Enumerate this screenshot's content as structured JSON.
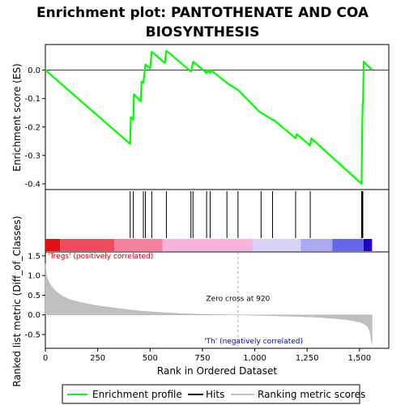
{
  "chart_data": {
    "type": "line",
    "title_line1": "Enrichment plot: PANTOTHENATE AND COA",
    "title_line2": "BIOSYNTHESIS",
    "top_panel": {
      "ylabel": "Enrichment score (ES)",
      "ylim": [
        -0.42,
        0.09
      ],
      "yticks": [
        0.0,
        -0.1,
        -0.2,
        -0.3,
        -0.4
      ],
      "ytick_labels": [
        "0.0",
        "-0.1",
        "-0.2",
        "-0.3",
        "-0.4"
      ],
      "series": [
        {
          "name": "Enrichment profile",
          "color": "#00ff00",
          "x": [
            0,
            405,
            408,
            420,
            423,
            455,
            460,
            468,
            478,
            500,
            508,
            570,
            578,
            695,
            700,
            705,
            770,
            775,
            787,
            790,
            867,
            870,
            920,
            1020,
            1030,
            1085,
            1090,
            1195,
            1200,
            1265,
            1270,
            1510,
            1512,
            1515,
            1517,
            1520,
            1560
          ],
          "y": [
            0.0,
            -0.26,
            -0.165,
            -0.175,
            -0.085,
            -0.11,
            -0.04,
            -0.045,
            0.02,
            0.005,
            0.065,
            0.025,
            0.068,
            -0.005,
            0.01,
            0.03,
            -0.01,
            0.0,
            -0.01,
            0.0,
            -0.045,
            -0.047,
            -0.07,
            -0.145,
            -0.15,
            -0.175,
            -0.175,
            -0.24,
            -0.225,
            -0.265,
            -0.24,
            -0.4,
            -0.26,
            -0.12,
            -0.11,
            0.03,
            0.0
          ]
        }
      ]
    },
    "hits": [
      405,
      420,
      468,
      478,
      508,
      578,
      695,
      705,
      770,
      787,
      867,
      920,
      1030,
      1085,
      1195,
      1265,
      1510,
      1512,
      1514,
      1516
    ],
    "middle_panel": {
      "colors": [
        "#dd1111",
        "#ee4c5c",
        "#f5829c",
        "#f8b4dc",
        "#d8d4f8",
        "#aaaaf0",
        "#6666e8",
        "#2200cc"
      ],
      "segments": [
        {
          "from": 0,
          "to": 70,
          "color_index": 0
        },
        {
          "from": 70,
          "to": 330,
          "color_index": 1
        },
        {
          "from": 330,
          "to": 560,
          "color_index": 2
        },
        {
          "from": 560,
          "to": 990,
          "color_index": 3
        },
        {
          "from": 990,
          "to": 1220,
          "color_index": 4
        },
        {
          "from": 1220,
          "to": 1370,
          "color_index": 5
        },
        {
          "from": 1370,
          "to": 1520,
          "color_index": 6
        },
        {
          "from": 1520,
          "to": 1560,
          "color_index": 7
        }
      ]
    },
    "bottom_panel": {
      "ylabel": "Ranked list metric (Diff_of_Classes)",
      "xlabel": "Rank in Ordered Dataset",
      "ylim": [
        -0.85,
        1.6
      ],
      "yticks": [
        -0.5,
        0.0,
        0.5,
        1.0,
        1.5
      ],
      "ytick_labels": [
        "-0.5",
        "0.0",
        "0.5",
        "1.0",
        "1.5"
      ],
      "xlim": [
        0,
        1640
      ],
      "xticks": [
        0,
        250,
        500,
        750,
        1000,
        1250,
        1500
      ],
      "xtick_labels": [
        "0",
        "250",
        "500",
        "750",
        "1,000",
        "1,250",
        "1,500"
      ],
      "metric_x": [
        0,
        5,
        15,
        30,
        50,
        80,
        120,
        180,
        250,
        350,
        450,
        550,
        650,
        750,
        850,
        920,
        1000,
        1100,
        1200,
        1300,
        1400,
        1450,
        1500,
        1520,
        1540,
        1550,
        1560
      ],
      "metric_y": [
        1.3,
        1.0,
        0.85,
        0.72,
        0.6,
        0.48,
        0.38,
        0.3,
        0.23,
        0.16,
        0.1,
        0.06,
        0.03,
        0.015,
        0.005,
        0.0,
        -0.01,
        -0.025,
        -0.04,
        -0.06,
        -0.1,
        -0.13,
        -0.18,
        -0.22,
        -0.3,
        -0.42,
        -0.75
      ],
      "zero_cross": 920,
      "zero_cross_label": "Zero cross at 920",
      "pos_label": "'Tregs' (positively correlated)",
      "neg_label": "'Th' (negatively correlated)",
      "pos_color": "#cc0000",
      "neg_color": "#0000cc"
    },
    "legend": {
      "items": [
        {
          "label": "Enrichment profile",
          "color": "#00ff00"
        },
        {
          "label": "Hits",
          "color": "#000000"
        },
        {
          "label": "Ranking metric scores",
          "color": "#c0c0c0"
        }
      ]
    }
  }
}
